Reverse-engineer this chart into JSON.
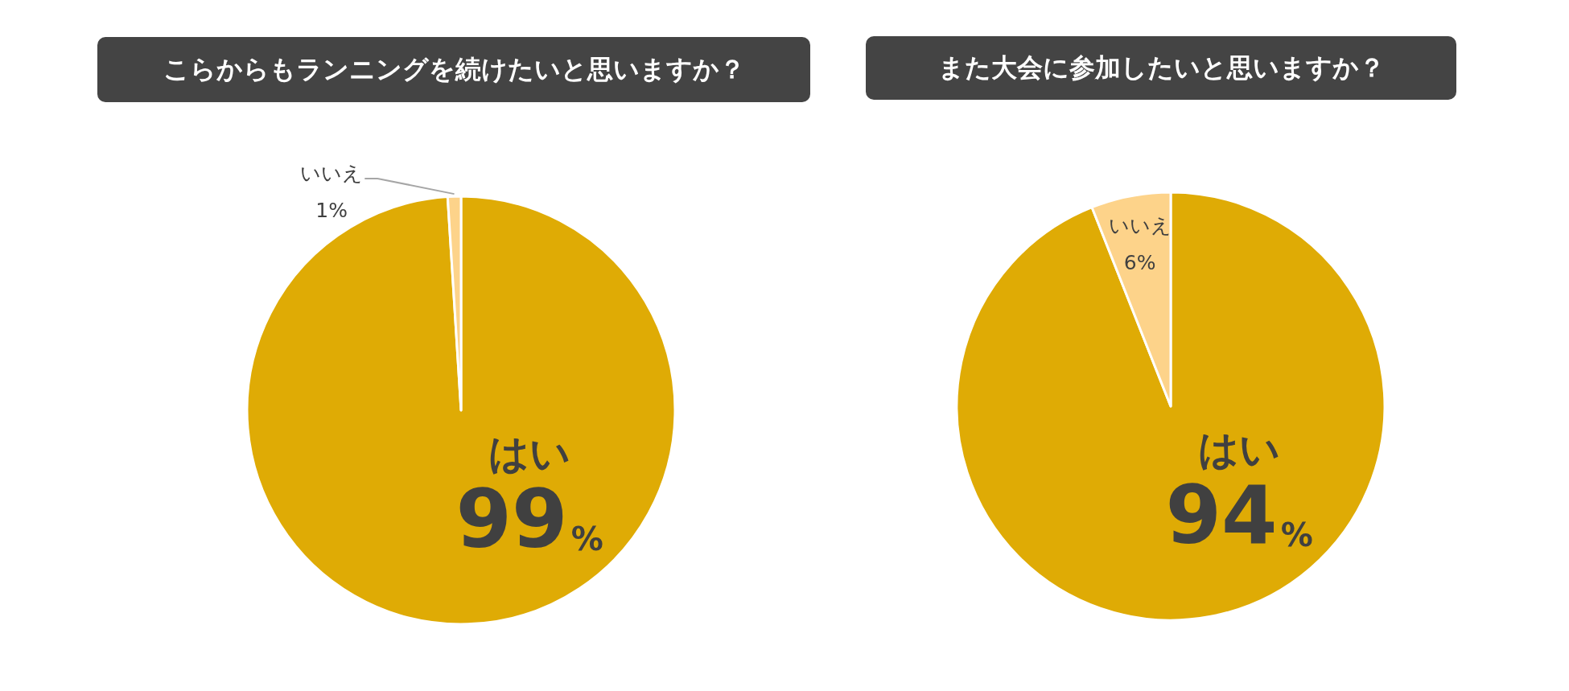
{
  "chart_data": [
    {
      "type": "pie",
      "title": "こらからもランニングを続けたいと思いますか？",
      "categories": [
        "はい",
        "いいえ"
      ],
      "values": [
        99,
        1
      ],
      "colors": [
        "#dfab05",
        "#fdd38a"
      ],
      "value_labels": [
        "99%",
        "1%"
      ]
    },
    {
      "type": "pie",
      "title": "また大会に参加したいと思いますか？",
      "categories": [
        "はい",
        "いいえ"
      ],
      "values": [
        94,
        6
      ],
      "colors": [
        "#dfab05",
        "#fdd38a"
      ],
      "value_labels": [
        "94%",
        "6%"
      ]
    }
  ]
}
